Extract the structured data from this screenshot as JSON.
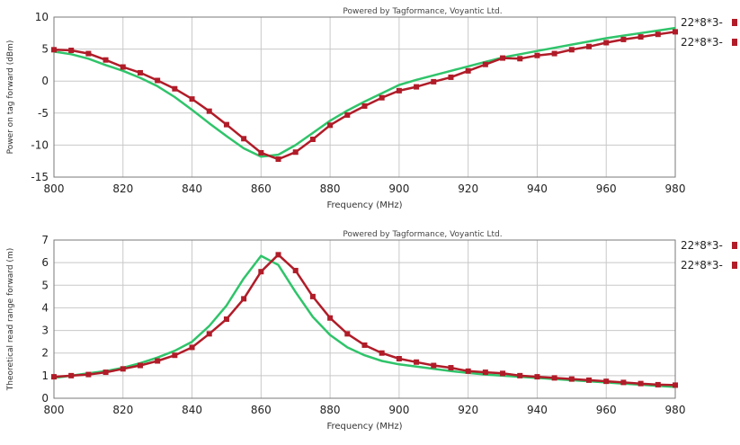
{
  "chart_data": [
    {
      "type": "line",
      "title": "",
      "credit": "Powered by Tagformance, Voyantic Ltd.",
      "xlabel": "Frequency (MHz)",
      "ylabel": "Power on tag forward (dBm)",
      "xlim": [
        800,
        980
      ],
      "ylim": [
        -15,
        10
      ],
      "xticks": [
        800,
        820,
        840,
        860,
        880,
        900,
        920,
        940,
        960,
        980
      ],
      "yticks": [
        -15,
        -10,
        -5,
        0,
        5,
        10
      ],
      "grid": true,
      "legend_position": "right",
      "series": [
        {
          "name": "22*8*3-",
          "color": "#b01c28",
          "marker": "square",
          "x": [
            800,
            805,
            810,
            815,
            820,
            825,
            830,
            835,
            840,
            845,
            850,
            855,
            860,
            865,
            870,
            875,
            880,
            885,
            890,
            895,
            900,
            905,
            910,
            915,
            920,
            925,
            930,
            935,
            940,
            945,
            950,
            955,
            960,
            965,
            970,
            975,
            980
          ],
          "y": [
            4.9,
            4.8,
            4.3,
            3.3,
            2.2,
            1.3,
            0.1,
            -1.2,
            -2.8,
            -4.7,
            -6.8,
            -9.0,
            -11.2,
            -12.2,
            -11.1,
            -9.1,
            -6.9,
            -5.3,
            -3.9,
            -2.6,
            -1.5,
            -0.9,
            -0.1,
            0.6,
            1.6,
            2.6,
            3.6,
            3.5,
            4.0,
            4.3,
            4.9,
            5.4,
            6.0,
            6.5,
            6.9,
            7.3,
            7.7
          ]
        },
        {
          "name": "22*8*3-",
          "color": "#2fc46a",
          "marker": "none",
          "x": [
            800,
            805,
            810,
            815,
            820,
            825,
            830,
            835,
            840,
            845,
            850,
            855,
            860,
            865,
            870,
            875,
            880,
            885,
            890,
            895,
            900,
            905,
            910,
            915,
            920,
            925,
            930,
            935,
            940,
            945,
            950,
            955,
            960,
            965,
            970,
            975,
            980
          ],
          "y": [
            4.6,
            4.2,
            3.5,
            2.5,
            1.6,
            0.5,
            -0.8,
            -2.5,
            -4.5,
            -6.6,
            -8.6,
            -10.5,
            -11.8,
            -11.5,
            -10.0,
            -8.1,
            -6.2,
            -4.6,
            -3.2,
            -1.9,
            -0.6,
            0.2,
            0.9,
            1.6,
            2.3,
            3.0,
            3.7,
            4.2,
            4.7,
            5.2,
            5.7,
            6.2,
            6.7,
            7.1,
            7.5,
            7.9,
            8.3
          ]
        }
      ]
    },
    {
      "type": "line",
      "title": "",
      "credit": "Powered by Tagformance, Voyantic Ltd.",
      "xlabel": "Frequency (MHz)",
      "ylabel": "Theoretical read range forward (m)",
      "xlim": [
        800,
        980
      ],
      "ylim": [
        0,
        7
      ],
      "xticks": [
        800,
        820,
        840,
        860,
        880,
        900,
        920,
        940,
        960,
        980
      ],
      "yticks": [
        0,
        1,
        2,
        3,
        4,
        5,
        6,
        7
      ],
      "grid": true,
      "legend_position": "right",
      "series": [
        {
          "name": "22*8*3-",
          "color": "#b01c28",
          "marker": "square",
          "x": [
            800,
            805,
            810,
            815,
            820,
            825,
            830,
            835,
            840,
            845,
            850,
            855,
            860,
            865,
            870,
            875,
            880,
            885,
            890,
            895,
            900,
            905,
            910,
            915,
            920,
            925,
            930,
            935,
            940,
            945,
            950,
            955,
            960,
            965,
            970,
            975,
            980
          ],
          "y": [
            0.95,
            1.0,
            1.05,
            1.15,
            1.3,
            1.45,
            1.65,
            1.9,
            2.25,
            2.85,
            3.5,
            4.4,
            5.6,
            6.35,
            5.65,
            4.5,
            3.55,
            2.85,
            2.35,
            2.0,
            1.75,
            1.6,
            1.45,
            1.35,
            1.2,
            1.15,
            1.1,
            1.0,
            0.95,
            0.9,
            0.85,
            0.8,
            0.75,
            0.7,
            0.65,
            0.6,
            0.58
          ]
        },
        {
          "name": "22*8*3-",
          "color": "#2fc46a",
          "marker": "none",
          "x": [
            800,
            805,
            810,
            815,
            820,
            825,
            830,
            835,
            840,
            845,
            850,
            855,
            860,
            865,
            870,
            875,
            880,
            885,
            890,
            895,
            900,
            905,
            910,
            915,
            920,
            925,
            930,
            935,
            940,
            945,
            950,
            955,
            960,
            965,
            970,
            975,
            980
          ],
          "y": [
            0.9,
            1.0,
            1.1,
            1.2,
            1.35,
            1.55,
            1.8,
            2.1,
            2.5,
            3.2,
            4.1,
            5.3,
            6.3,
            5.9,
            4.7,
            3.6,
            2.8,
            2.25,
            1.9,
            1.65,
            1.5,
            1.4,
            1.3,
            1.2,
            1.12,
            1.05,
            1.0,
            0.95,
            0.9,
            0.85,
            0.8,
            0.75,
            0.7,
            0.65,
            0.6,
            0.55,
            0.5
          ]
        }
      ]
    }
  ]
}
